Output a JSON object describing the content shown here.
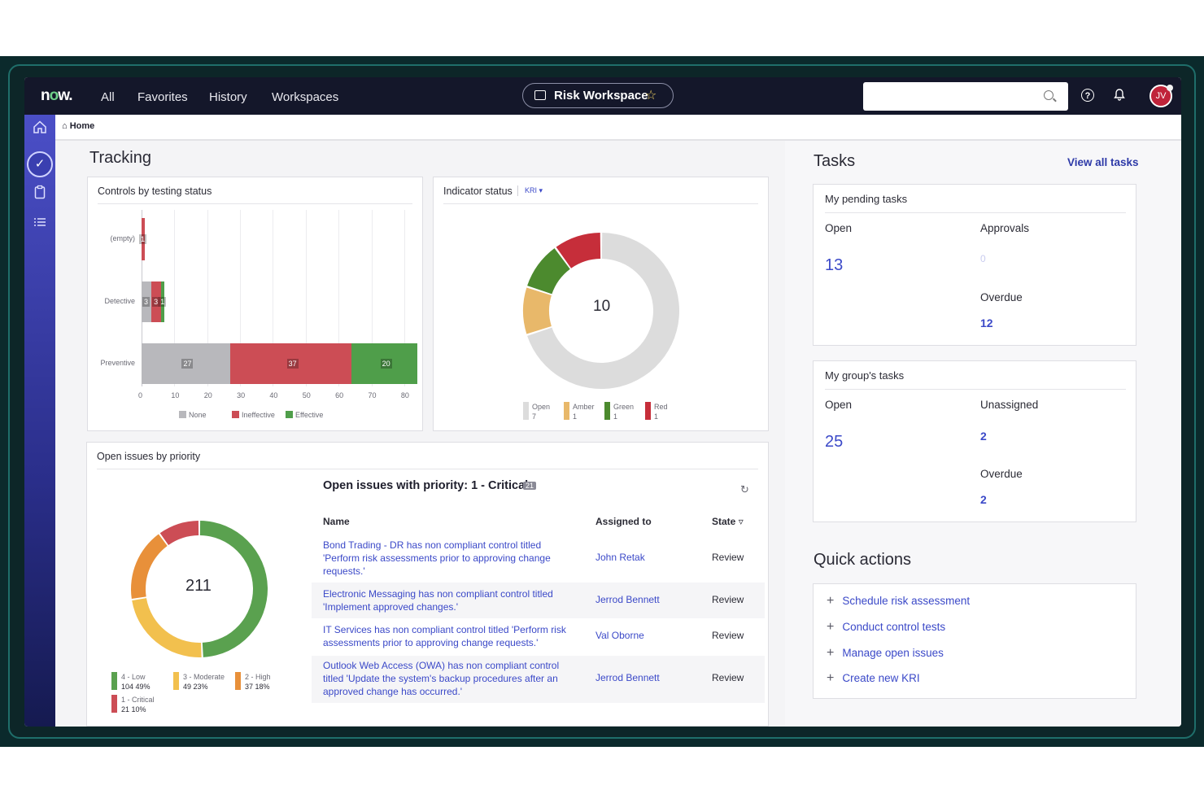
{
  "topbar": {
    "logo": "now",
    "nav": [
      "All",
      "Favorites",
      "History",
      "Workspaces"
    ],
    "workspace_label": "Risk Workspace",
    "search_value": "",
    "avatar_initials": "JV"
  },
  "breadcrumb": {
    "home": "Home"
  },
  "tracking": {
    "title": "Tracking",
    "controls_card": {
      "title": "Controls by testing status",
      "chart_data": {
        "type": "bar",
        "orientation": "horizontal",
        "stacked": true,
        "categories": [
          "(empty)",
          "Detective",
          "Preventive"
        ],
        "series": [
          {
            "name": "None",
            "values": [
              0,
              3,
              27
            ],
            "color": "#b8b8bc"
          },
          {
            "name": "Ineffective",
            "values": [
              1,
              3,
              37
            ],
            "color": "#cc4d55"
          },
          {
            "name": "Effective",
            "values": [
              0,
              1,
              20
            ],
            "color": "#4f9e4a"
          }
        ],
        "xticks": [
          "0",
          "10",
          "20",
          "30",
          "40",
          "50",
          "60",
          "70",
          "80"
        ],
        "xlim": [
          0,
          84
        ],
        "grid": true,
        "legend": "bottom"
      }
    },
    "indicator_card": {
      "title": "Indicator status",
      "filter": "KRI",
      "center_value": "10",
      "chart_data": {
        "type": "pie",
        "donut": true,
        "slices": [
          {
            "name": "Open",
            "value": 7,
            "color": "#dcdcdc"
          },
          {
            "name": "Amber",
            "value": 1,
            "color": "#e8b86a"
          },
          {
            "name": "Green",
            "value": 1,
            "color": "#4c8a2e"
          },
          {
            "name": "Red",
            "value": 1,
            "color": "#c62e3a"
          }
        ],
        "legend": "bottom"
      }
    }
  },
  "issues": {
    "card_title": "Open issues by priority",
    "center_value": "211",
    "chart_data": {
      "type": "pie",
      "donut": true,
      "slices": [
        {
          "name": "4 - Low",
          "value": 104,
          "percent": "49%",
          "color": "#5aa14f"
        },
        {
          "name": "3 - Moderate",
          "value": 49,
          "percent": "23%",
          "color": "#f2c04e"
        },
        {
          "name": "2 - High",
          "value": 37,
          "percent": "18%",
          "color": "#e8903a"
        },
        {
          "name": "1 - Critical",
          "value": 21,
          "percent": "10%",
          "color": "#cc4d55"
        }
      ],
      "legend": "bottom"
    },
    "list_title": "Open issues with priority: 1 - Critical",
    "list_count": "21",
    "columns": {
      "name": "Name",
      "assigned": "Assigned to",
      "state": "State"
    },
    "rows": [
      {
        "name": "Bond Trading - DR has non compliant control titled 'Perform risk assessments prior to approving change requests.'",
        "assigned": "John Retak",
        "state": "Review"
      },
      {
        "name": "Electronic Messaging has non compliant control titled 'Implement approved changes.'",
        "assigned": "Jerrod Bennett",
        "state": "Review"
      },
      {
        "name": "IT Services has non compliant control titled 'Perform risk assessments prior to approving change requests.'",
        "assigned": "Val Oborne",
        "state": "Review"
      },
      {
        "name": "Outlook Web Access (OWA) has non compliant control titled 'Update the system's backup procedures after an approved change has occurred.'",
        "assigned": "Jerrod Bennett",
        "state": "Review"
      }
    ]
  },
  "tasks": {
    "title": "Tasks",
    "view_all": "View all tasks",
    "pending": {
      "title": "My pending tasks",
      "open_label": "Open",
      "open_value": "13",
      "approvals_label": "Approvals",
      "approvals_value": "0",
      "overdue_label": "Overdue",
      "overdue_value": "12"
    },
    "group": {
      "title": "My group's tasks",
      "open_label": "Open",
      "open_value": "25",
      "unassigned_label": "Unassigned",
      "unassigned_value": "2",
      "overdue_label": "Overdue",
      "overdue_value": "2"
    }
  },
  "quick_actions": {
    "title": "Quick actions",
    "items": [
      "Schedule risk assessment",
      "Conduct control tests",
      "Manage open issues",
      "Create new KRI"
    ]
  },
  "colors": {
    "accent": "#3b49c8",
    "topbar": "#14172a",
    "rail": "#4b4fc7"
  }
}
